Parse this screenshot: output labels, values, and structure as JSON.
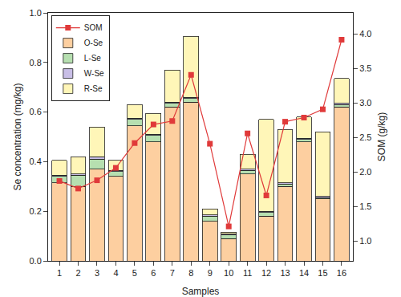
{
  "chart_data": {
    "type": "bar",
    "stacked": true,
    "x_label": "Samples",
    "y_label": "Se concentration (mg/kg)",
    "y2_label": "SOM (g/kg)",
    "categories": [
      "1",
      "2",
      "3",
      "4",
      "5",
      "6",
      "7",
      "8",
      "9",
      "10",
      "11",
      "12",
      "13",
      "14",
      "15",
      "16"
    ],
    "series": [
      {
        "name": "O-Se",
        "type": "bar",
        "color": "#FDCFA0",
        "values": [
          0.315,
          0.3,
          0.37,
          0.34,
          0.545,
          0.48,
          0.62,
          0.64,
          0.16,
          0.09,
          0.35,
          0.18,
          0.3,
          0.48,
          0.25,
          0.62
        ]
      },
      {
        "name": "L-Se",
        "type": "bar",
        "color": "#B6DFB0",
        "values": [
          0.025,
          0.045,
          0.04,
          0.02,
          0.025,
          0.025,
          0.015,
          0.015,
          0.02,
          0.015,
          0.015,
          0.015,
          0.01,
          0.01,
          0.005,
          0.01
        ]
      },
      {
        "name": "W-Se",
        "type": "bar",
        "color": "#C8BEE6",
        "values": [
          0.005,
          0.005,
          0.01,
          0.005,
          0.005,
          0.005,
          0.005,
          0.005,
          0.005,
          0.005,
          0.005,
          0.005,
          0.005,
          0.005,
          0.005,
          0.005
        ]
      },
      {
        "name": "R-Se",
        "type": "bar",
        "color": "#FFF6B8",
        "values": [
          0.06,
          0.07,
          0.12,
          0.04,
          0.055,
          0.085,
          0.13,
          0.245,
          0.025,
          0.005,
          0.06,
          0.37,
          0.215,
          0.085,
          0.26,
          0.1
        ]
      },
      {
        "name": "SOM",
        "type": "line",
        "axis": "y2",
        "color": "#E03A3A",
        "marker": "square",
        "values": [
          1.87,
          1.76,
          1.88,
          2.06,
          2.42,
          2.69,
          2.74,
          3.41,
          2.41,
          1.21,
          2.56,
          1.66,
          2.73,
          2.79,
          2.91,
          3.92
        ]
      }
    ],
    "ylim": [
      0,
      1.0
    ],
    "yticks": [
      {
        "value": 0,
        "label": "0.0"
      },
      0.2,
      0.4,
      0.6,
      0.8,
      {
        "value": 1,
        "label": "1.0"
      }
    ],
    "y2lim": [
      0.71,
      4.31
    ],
    "y2ticks": [
      {
        "value": 1,
        "label": "1.0"
      },
      1.5,
      {
        "value": 2,
        "label": "2.0"
      },
      2.5,
      {
        "value": 3,
        "label": "3.0"
      },
      3.5,
      {
        "value": 4,
        "label": "4.0"
      }
    ],
    "grid": false,
    "legend": "upper left"
  }
}
